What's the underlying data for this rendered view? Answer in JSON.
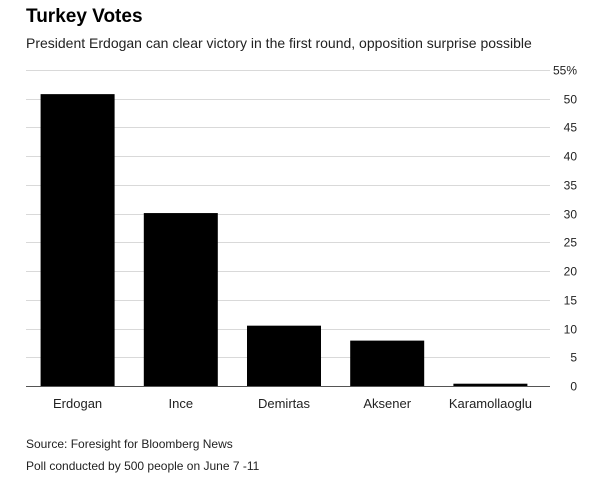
{
  "header": {
    "title": "Turkey Votes",
    "subtitle": "President Erdogan can clear victory in the first round, opposition surprise possible"
  },
  "footer": {
    "source": "Source: Foresight for Bloomberg News",
    "note": "Poll conducted by 500 people on June 7 -11"
  },
  "colors": {
    "bar": "#000000",
    "grid": "#d9d9d9",
    "axis": "#555555",
    "text": "#222222"
  },
  "chart_data": {
    "type": "bar",
    "title": "Turkey Votes",
    "subtitle": "President Erdogan can clear victory in the first round, opposition surprise possible",
    "categories": [
      "Erdogan",
      "Ince",
      "Demirtas",
      "Aksener",
      "Karamollaoglu"
    ],
    "values": [
      50.8,
      30.1,
      10.5,
      7.9,
      0.4
    ],
    "ylim": [
      0,
      55
    ],
    "yticks": [
      0,
      5,
      10,
      15,
      20,
      25,
      30,
      35,
      40,
      45,
      50,
      55
    ],
    "ytick_labels": [
      "0",
      "5",
      "10",
      "15",
      "20",
      "25",
      "30",
      "35",
      "40",
      "45",
      "50",
      "55%"
    ],
    "y_axis_side": "right",
    "grid": true,
    "xlabel": "",
    "ylabel": ""
  }
}
